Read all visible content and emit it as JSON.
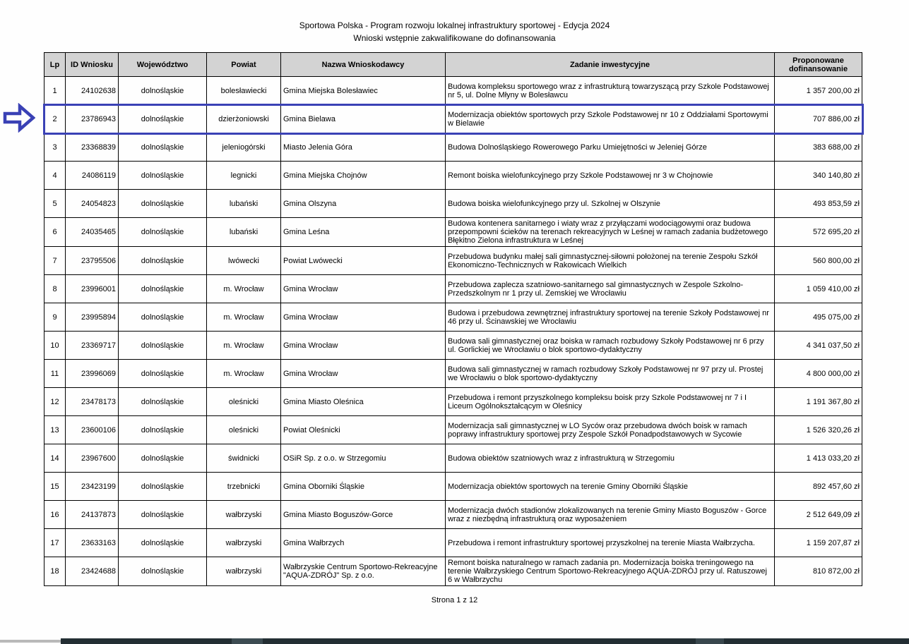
{
  "page": {
    "title_line1": "Sportowa Polska - Program rozwoju lokalnej infrastruktury sportowej - Edycja 2024",
    "title_line2": "Wnioski wstępnie zakwalifikowane do dofinansowania",
    "footer": "Strona 1 z 12"
  },
  "annotation": {
    "arrow_icon": "right-arrow-icon",
    "highlight_color": "#3a41b5",
    "highlighted_row_lp": 2
  },
  "colors": {
    "header_bg": "#d3d3d3",
    "table_border": "#000000",
    "taskbar_dark": "#232e33"
  },
  "table": {
    "columns": [
      "Lp",
      "ID Wniosku",
      "Województwo",
      "Powiat",
      "Nazwa Wnioskodawcy",
      "Zadanie inwestycyjne",
      "Proponowane dofinansowanie"
    ],
    "rows": [
      {
        "lp": "1",
        "id": "24102638",
        "wojewodztwo": "dolnośląskie",
        "powiat": "bolesławiecki",
        "nazwa": "Gmina Miejska Bolesławiec",
        "zadanie": "Budowa kompleksu sportowego wraz z infrastrukturą towarzyszącą przy Szkole Podstawowej nr 5, ul. Dolne Młyny w Bolesławcu",
        "kwota": "1 357 200,00 zł"
      },
      {
        "lp": "2",
        "id": "23786943",
        "wojewodztwo": "dolnośląskie",
        "powiat": "dzierżoniowski",
        "nazwa": "Gmina Bielawa",
        "zadanie": "Modernizacja obiektów sportowych przy Szkole Podstawowej nr 10 z Oddziałami Sportowymi w Bielawie",
        "kwota": "707 886,00 zł"
      },
      {
        "lp": "3",
        "id": "23368839",
        "wojewodztwo": "dolnośląskie",
        "powiat": "jeleniogórski",
        "nazwa": "Miasto Jelenia Góra",
        "zadanie": "Budowa Dolnośląskiego Rowerowego Parku Umiejętności w Jeleniej Górze",
        "kwota": "383 688,00 zł"
      },
      {
        "lp": "4",
        "id": "24086119",
        "wojewodztwo": "dolnośląskie",
        "powiat": "legnicki",
        "nazwa": "Gmina Miejska Chojnów",
        "zadanie": "Remont boiska wielofunkcyjnego przy Szkole Podstawowej nr 3 w Chojnowie",
        "kwota": "340 140,80 zł"
      },
      {
        "lp": "5",
        "id": "24054823",
        "wojewodztwo": "dolnośląskie",
        "powiat": "lubański",
        "nazwa": "Gmina Olszyna",
        "zadanie": "Budowa boiska wielofunkcyjnego przy ul. Szkolnej w Olszynie",
        "kwota": "493 853,59 zł"
      },
      {
        "lp": "6",
        "id": "24035465",
        "wojewodztwo": "dolnośląskie",
        "powiat": "lubański",
        "nazwa": "Gmina Leśna",
        "zadanie": "Budowa kontenera sanitarnego i wiaty wraz z przyłączami wodociągowymi oraz budowa przepompowni ścieków na terenach rekreacyjnych w Leśnej w ramach zadania budżetowego Błękitno Zielona infrastruktura w Leśnej",
        "kwota": "572 695,20 zł"
      },
      {
        "lp": "7",
        "id": "23795506",
        "wojewodztwo": "dolnośląskie",
        "powiat": "lwówecki",
        "nazwa": "Powiat Lwówecki",
        "zadanie": "Przebudowa budynku małej sali gimnastycznej-siłowni położonej na terenie Zespołu Szkół Ekonomiczno-Technicznych w Rakowicach Wielkich",
        "kwota": "560 800,00 zł"
      },
      {
        "lp": "8",
        "id": "23996001",
        "wojewodztwo": "dolnośląskie",
        "powiat": "m. Wrocław",
        "nazwa": "Gmina Wrocław",
        "zadanie": "Przebudowa zaplecza szatniowo-sanitarnego sal gimnastycznych w Zespole Szkolno-Przedszkolnym nr 1 przy ul. Zemskiej we Wrocławiu",
        "kwota": "1 059 410,00 zł"
      },
      {
        "lp": "9",
        "id": "23995894",
        "wojewodztwo": "dolnośląskie",
        "powiat": "m. Wrocław",
        "nazwa": "Gmina Wrocław",
        "zadanie": "Budowa i przebudowa zewnętrznej infrastruktury sportowej na terenie Szkoły Podstawowej nr 46 przy ul. Ścinawskiej we Wrocławiu",
        "kwota": "495 075,00 zł"
      },
      {
        "lp": "10",
        "id": "23369717",
        "wojewodztwo": "dolnośląskie",
        "powiat": "m. Wrocław",
        "nazwa": "Gmina Wrocław",
        "zadanie": "Budowa sali gimnastycznej oraz boiska w ramach rozbudowy Szkoły Podstawowej nr 6 przy ul. Gorlickiej we Wrocławiu o blok sportowo-dydaktyczny",
        "kwota": "4 341 037,50 zł"
      },
      {
        "lp": "11",
        "id": "23996069",
        "wojewodztwo": "dolnośląskie",
        "powiat": "m. Wrocław",
        "nazwa": "Gmina Wrocław",
        "zadanie": "Budowa sali gimnastycznej w ramach rozbudowy Szkoły Podstawowej nr 97 przy ul. Prostej we Wrocławiu o blok sportowo-dydaktyczny",
        "kwota": "4 800 000,00 zł"
      },
      {
        "lp": "12",
        "id": "23478173",
        "wojewodztwo": "dolnośląskie",
        "powiat": "oleśnicki",
        "nazwa": "Gmina Miasto Oleśnica",
        "zadanie": "Przebudowa i remont przyszkolnego kompleksu boisk przy Szkole Podstawowej nr 7 i I Liceum Ogólnokształcącym w Oleśnicy",
        "kwota": "1 191 367,80 zł"
      },
      {
        "lp": "13",
        "id": "23600106",
        "wojewodztwo": "dolnośląskie",
        "powiat": "oleśnicki",
        "nazwa": "Powiat Oleśnicki",
        "zadanie": "Modernizacja sali gimnastycznej w LO Syców oraz przebudowa dwóch boisk w ramach poprawy infrastruktury sportowej przy Zespole Szkół Ponadpodstawowych w Sycowie",
        "kwota": "1 526 320,26 zł"
      },
      {
        "lp": "14",
        "id": "23967600",
        "wojewodztwo": "dolnośląskie",
        "powiat": "świdnicki",
        "nazwa": "OSiR Sp. z o.o. w Strzegomiu",
        "zadanie": "Budowa obiektów szatniowych wraz z infrastrukturą w Strzegomiu",
        "kwota": "1 413 033,20 zł"
      },
      {
        "lp": "15",
        "id": "23423199",
        "wojewodztwo": "dolnośląskie",
        "powiat": "trzebnicki",
        "nazwa": "Gmina Oborniki Śląskie",
        "zadanie": "Modernizacja obiektów sportowych na terenie Gminy Oborniki Śląskie",
        "kwota": "892 457,60 zł"
      },
      {
        "lp": "16",
        "id": "24137873",
        "wojewodztwo": "dolnośląskie",
        "powiat": "wałbrzyski",
        "nazwa": "Gmina Miasto Boguszów-Gorce",
        "zadanie": "Modernizacja dwóch stadionów zlokalizowanych na terenie Gminy Miasto Boguszów - Gorce wraz z niezbędną infrastrukturą oraz wyposażeniem",
        "kwota": "2 512 649,09 zł"
      },
      {
        "lp": "17",
        "id": "23633163",
        "wojewodztwo": "dolnośląskie",
        "powiat": "wałbrzyski",
        "nazwa": "Gmina Wałbrzych",
        "zadanie": "Przebudowa i remont infrastruktury sportowej przyszkolnej na terenie Miasta Wałbrzycha.",
        "kwota": "1 159 207,87 zł"
      },
      {
        "lp": "18",
        "id": "23424688",
        "wojewodztwo": "dolnośląskie",
        "powiat": "wałbrzyski",
        "nazwa": "Wałbrzyskie Centrum Sportowo-Rekreacyjne \"AQUA-ZDRÓJ\" Sp. z o.o.",
        "zadanie": "Remont boiska naturalnego w ramach zadania pn. Modernizacja boiska treningowego na terenie Wałbrzyskiego Centrum Sportowo-Rekreacyjnego AQUA-ZDRÓJ przy ul. Ratuszowej 6 w Wałbrzychu",
        "kwota": "810 872,00 zł"
      }
    ]
  }
}
